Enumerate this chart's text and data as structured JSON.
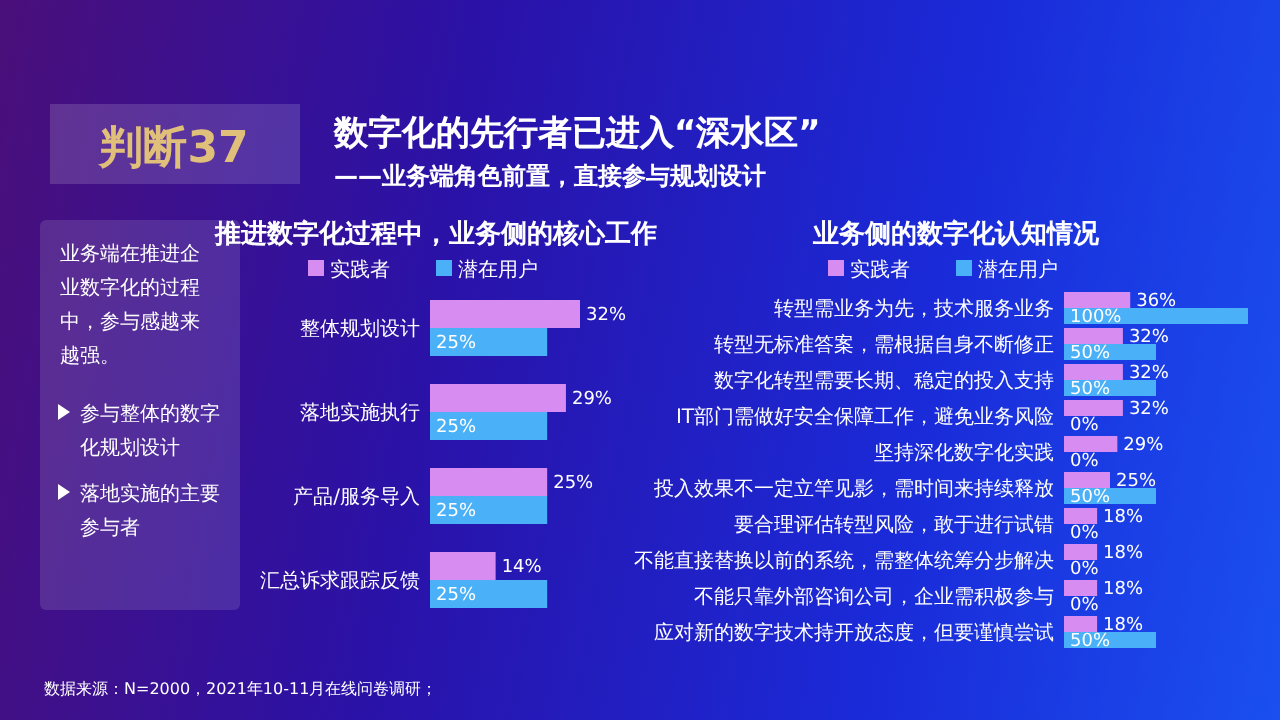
{
  "chart_data": [
    {
      "type": "other",
      "title": "数字化的先行者已进入“深水区”",
      "subtitle": "——业务端角色前置，直接参与规划设计",
      "annotations": [
        "判断37",
        "业务端在推进企业数字化的过程中，参与感越来越强。",
        "参与整体的数字化规划设计",
        "落地实施的主要参与者",
        "数据来源：N=2000，2021年10-11月在线问卷调研；"
      ]
    },
    {
      "type": "bar",
      "orientation": "horizontal",
      "title": "推进数字化过程中，业务侧的核心工作",
      "legend": "top",
      "categories": [
        "整体规划设计",
        "落地实施执行",
        "产品/服务导入",
        "汇总诉求跟踪反馈"
      ],
      "series": [
        {
          "name": "实践者",
          "color": "#d68cf0",
          "values": [
            32,
            29,
            25,
            14
          ],
          "value_labels": [
            "32%",
            "29%",
            "25%",
            "14%"
          ]
        },
        {
          "name": "潜在用户",
          "color": "#4ab0f7",
          "values": [
            25,
            25,
            25,
            25
          ],
          "value_labels": [
            "25%",
            "25%",
            "25%",
            "25%"
          ]
        }
      ]
    },
    {
      "type": "bar",
      "orientation": "horizontal",
      "title": "业务侧的数字化认知情况",
      "legend": "top",
      "categories": [
        "转型需业务为先，技术服务业务",
        "转型无标准答案，需根据自身不断修正",
        "数字化转型需要长期、稳定的投入支持",
        "IT部门需做好安全保障工作，避免业务风险",
        "坚持深化数字化实践",
        "投入效果不一定立竿见影，需时间来持续释放",
        "要合理评估转型风险，敢于进行试错",
        "不能直接替换以前的系统，需整体统筹分步解决",
        "不能只靠外部咨询公司，企业需积极参与",
        "应对新的数字技术持开放态度，但要谨慎尝试"
      ],
      "series": [
        {
          "name": "实践者",
          "color": "#d68cf0",
          "values": [
            36,
            32,
            32,
            32,
            29,
            25,
            18,
            18,
            18,
            18
          ],
          "value_labels": [
            "36%",
            "32%",
            "32%",
            "32%",
            "29%",
            "25%",
            "18%",
            "18%",
            "18%",
            "18%"
          ]
        },
        {
          "name": "潜在用户",
          "color": "#4ab0f7",
          "values": [
            100,
            50,
            50,
            0,
            0,
            50,
            0,
            0,
            0,
            50
          ],
          "value_labels": [
            "100%",
            "50%",
            "50%",
            "0%",
            "0%",
            "50%",
            "0%",
            "0%",
            "0%",
            "50%"
          ]
        }
      ]
    }
  ]
}
